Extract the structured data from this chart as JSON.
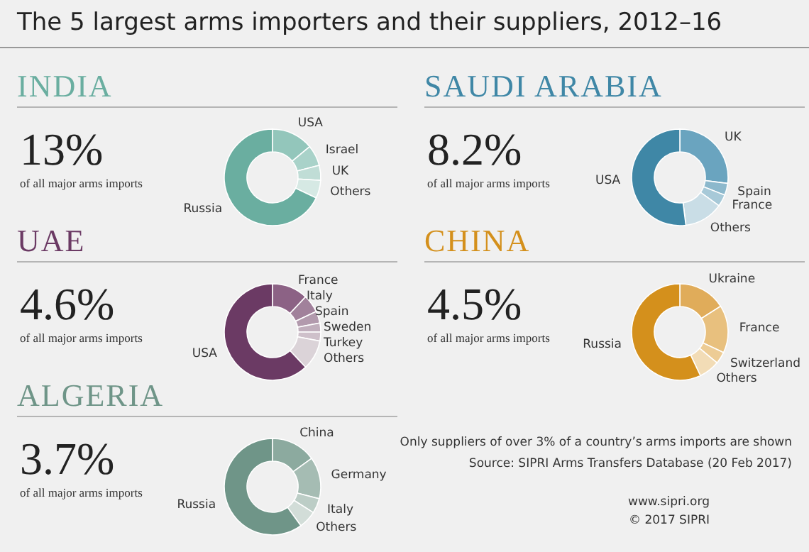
{
  "chart_data": [
    {
      "type": "other",
      "title": "The 5 largest arms importers and their suppliers, 2012–16",
      "annotations": [
        "Only suppliers of over 3% of a country’s arms imports are shown",
        "Source: SIPRI Arms Transfers Database (20 Feb 2017)",
        "www.sipri.org",
        "© 2017 SIPRI"
      ]
    },
    {
      "type": "donut",
      "title": "INDIA",
      "annotations": [
        "13%",
        "of all major arms imports"
      ],
      "categories": [
        "USA",
        "Israel",
        "UK",
        "Others",
        "Russia"
      ],
      "values": [
        14,
        7,
        5,
        6,
        68
      ],
      "colors": [
        "#93c6bb",
        "#a9d2c9",
        "#c0ddd6",
        "#d6e9e4",
        "#6aaea0"
      ]
    },
    {
      "type": "donut",
      "title": "SAUDI ARABIA",
      "annotations": [
        "8.2%",
        "of all major arms imports"
      ],
      "categories": [
        "UK",
        "Spain",
        "France",
        "Others",
        "USA"
      ],
      "values": [
        27,
        4,
        4,
        13,
        52
      ],
      "colors": [
        "#6aa4bf",
        "#8cb8cc",
        "#a7c9d8",
        "#c9dde6",
        "#3f87a6"
      ]
    },
    {
      "type": "donut",
      "title": "UAE",
      "annotations": [
        "4.6%",
        "of all major arms imports"
      ],
      "categories": [
        "France",
        "Italy",
        "Spain",
        "Sweden",
        "Turkey",
        "Others",
        "USA"
      ],
      "values": [
        12,
        6,
        4,
        3,
        3,
        10,
        62
      ],
      "colors": [
        "#8c6285",
        "#a1819b",
        "#b29aad",
        "#c0aebc",
        "#cec0ca",
        "#dbd3d8",
        "#6b3a64"
      ]
    },
    {
      "type": "donut",
      "title": "CHINA",
      "annotations": [
        "4.5%",
        "of all major arms imports"
      ],
      "categories": [
        "Ukraine",
        "France",
        "Switzerland",
        "Others",
        "Russia"
      ],
      "values": [
        16,
        16,
        4,
        7,
        57
      ],
      "colors": [
        "#e0ac5a",
        "#e8c07e",
        "#edcc95",
        "#f2dcb6",
        "#d4901c"
      ]
    },
    {
      "type": "donut",
      "title": "ALGERIA",
      "annotations": [
        "3.7%",
        "of all major arms imports"
      ],
      "categories": [
        "China",
        "Germany",
        "Italy",
        "Others",
        "Russia"
      ],
      "values": [
        15,
        14,
        5,
        6,
        60
      ],
      "colors": [
        "#8caa9f",
        "#a5bcb3",
        "#bccdc6",
        "#d2ddd8",
        "#6f9588"
      ]
    }
  ]
}
